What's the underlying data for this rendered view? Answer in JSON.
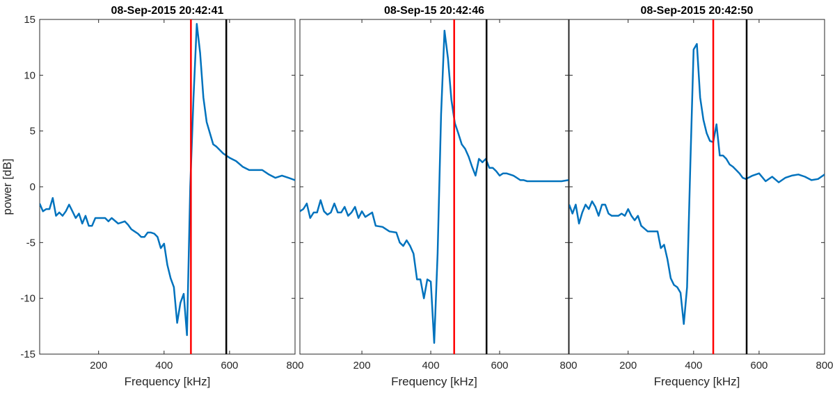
{
  "chart_data": [
    {
      "type": "line",
      "title": "08-Sep-2015 20:42:41",
      "xlabel": "Frequency [kHz]",
      "ylabel": "power [dB]",
      "xlim": [
        20,
        800
      ],
      "ylim": [
        -15,
        15
      ],
      "xticks": [
        200,
        400,
        600,
        800
      ],
      "yticks": [
        -15,
        -10,
        -5,
        0,
        5,
        10,
        15
      ],
      "grid": false,
      "series": [
        {
          "color": "#0072BD",
          "x": [
            20,
            30,
            40,
            50,
            60,
            70,
            80,
            90,
            100,
            110,
            120,
            130,
            140,
            150,
            160,
            170,
            180,
            190,
            200,
            210,
            220,
            230,
            240,
            260,
            280,
            290,
            300,
            310,
            320,
            330,
            340,
            350,
            360,
            370,
            380,
            390,
            400,
            410,
            420,
            430,
            440,
            450,
            460,
            470,
            480,
            490,
            500,
            510,
            520,
            530,
            540,
            550,
            560,
            570,
            580,
            590,
            600,
            620,
            640,
            660,
            680,
            700,
            720,
            740,
            760,
            780,
            800
          ],
          "y": [
            -1.5,
            -2.2,
            -2.0,
            -2.0,
            -1.0,
            -2.6,
            -2.3,
            -2.6,
            -2.2,
            -1.6,
            -2.2,
            -2.8,
            -2.4,
            -3.3,
            -2.6,
            -3.5,
            -3.5,
            -2.8,
            -2.8,
            -2.8,
            -2.8,
            -3.1,
            -2.8,
            -3.3,
            -3.1,
            -3.4,
            -3.8,
            -4.0,
            -4.2,
            -4.5,
            -4.5,
            -4.1,
            -4.1,
            -4.2,
            -4.5,
            -5.5,
            -5.1,
            -7.0,
            -8.2,
            -9.0,
            -12.2,
            -10.4,
            -9.6,
            -13.3,
            0.0,
            8.0,
            14.6,
            12.0,
            8.0,
            5.8,
            4.8,
            3.8,
            3.6,
            3.3,
            3.0,
            2.8,
            2.6,
            2.3,
            1.8,
            1.5,
            1.5,
            1.5,
            1.1,
            0.8,
            1.0,
            0.8,
            0.6
          ]
        }
      ],
      "vlines": [
        {
          "x": 482,
          "color": "#FF0000"
        },
        {
          "x": 590,
          "color": "#000000"
        }
      ]
    },
    {
      "type": "line",
      "title": "08-Sep-15 20:42:46",
      "xlabel": "Frequency [kHz]",
      "xlim": [
        20,
        800
      ],
      "ylim": [
        -15,
        15
      ],
      "xticks": [
        200,
        400,
        600,
        800
      ],
      "grid": false,
      "series": [
        {
          "color": "#0072BD",
          "x": [
            20,
            30,
            40,
            50,
            60,
            70,
            80,
            90,
            100,
            110,
            120,
            130,
            140,
            150,
            160,
            170,
            180,
            190,
            200,
            210,
            220,
            230,
            240,
            260,
            280,
            300,
            310,
            320,
            330,
            340,
            350,
            360,
            370,
            380,
            390,
            400,
            410,
            420,
            430,
            440,
            450,
            460,
            470,
            480,
            490,
            500,
            510,
            520,
            530,
            540,
            550,
            560,
            570,
            580,
            590,
            600,
            610,
            620,
            630,
            640,
            650,
            660,
            670,
            680,
            690,
            700,
            720,
            740,
            760,
            780,
            800
          ],
          "y": [
            -2.2,
            -2.0,
            -1.5,
            -2.8,
            -2.3,
            -2.3,
            -1.2,
            -2.2,
            -2.5,
            -2.3,
            -1.5,
            -2.3,
            -2.3,
            -1.8,
            -2.6,
            -2.3,
            -1.8,
            -2.8,
            -2.2,
            -2.7,
            -2.5,
            -2.3,
            -3.5,
            -3.6,
            -4.0,
            -4.1,
            -5.0,
            -5.3,
            -4.8,
            -5.3,
            -6.0,
            -8.3,
            -8.3,
            -10.0,
            -8.3,
            -8.5,
            -14.0,
            -6.0,
            6.5,
            14.0,
            11.5,
            7.8,
            5.7,
            4.8,
            3.8,
            3.4,
            2.7,
            1.8,
            1.0,
            2.5,
            2.2,
            2.5,
            1.7,
            1.7,
            1.4,
            1.0,
            1.2,
            1.2,
            1.1,
            1.0,
            0.8,
            0.6,
            0.6,
            0.5,
            0.5,
            0.5,
            0.5,
            0.5,
            0.5,
            0.5,
            0.6
          ]
        }
      ],
      "vlines": [
        {
          "x": 468,
          "color": "#FF0000"
        },
        {
          "x": 562,
          "color": "#000000"
        }
      ]
    },
    {
      "type": "line",
      "title": "08-Sep-2015 20:42:50",
      "xlabel": "Frequency [kHz]",
      "xlim": [
        20,
        800
      ],
      "ylim": [
        -15,
        15
      ],
      "xticks": [
        200,
        400,
        600,
        800
      ],
      "grid": false,
      "series": [
        {
          "color": "#0072BD",
          "x": [
            20,
            30,
            40,
            50,
            60,
            70,
            80,
            90,
            100,
            110,
            120,
            130,
            140,
            150,
            160,
            170,
            180,
            190,
            200,
            210,
            220,
            230,
            240,
            260,
            280,
            290,
            300,
            310,
            320,
            330,
            340,
            350,
            360,
            370,
            380,
            390,
            400,
            410,
            420,
            430,
            440,
            450,
            460,
            470,
            480,
            490,
            500,
            510,
            520,
            530,
            540,
            550,
            560,
            580,
            600,
            620,
            640,
            660,
            680,
            700,
            720,
            740,
            760,
            780,
            800
          ],
          "y": [
            -1.6,
            -2.4,
            -1.6,
            -3.3,
            -2.3,
            -1.6,
            -2.0,
            -1.3,
            -1.8,
            -2.6,
            -1.6,
            -1.6,
            -2.4,
            -2.6,
            -2.6,
            -2.6,
            -2.4,
            -2.6,
            -2.0,
            -2.6,
            -3.0,
            -2.6,
            -3.5,
            -4.0,
            -4.0,
            -4.0,
            -5.5,
            -5.2,
            -6.5,
            -8.2,
            -8.8,
            -9.0,
            -9.5,
            -12.3,
            -9.0,
            2.0,
            12.3,
            12.8,
            8.0,
            6.0,
            4.8,
            4.1,
            4.0,
            5.6,
            2.8,
            2.8,
            2.5,
            2.0,
            1.8,
            1.5,
            1.2,
            0.8,
            0.7,
            1.0,
            1.2,
            0.5,
            0.9,
            0.4,
            0.8,
            1.0,
            1.1,
            0.9,
            0.6,
            0.7,
            1.1
          ]
        }
      ],
      "vlines": [
        {
          "x": 460,
          "color": "#FF0000"
        },
        {
          "x": 562,
          "color": "#000000"
        }
      ]
    }
  ]
}
